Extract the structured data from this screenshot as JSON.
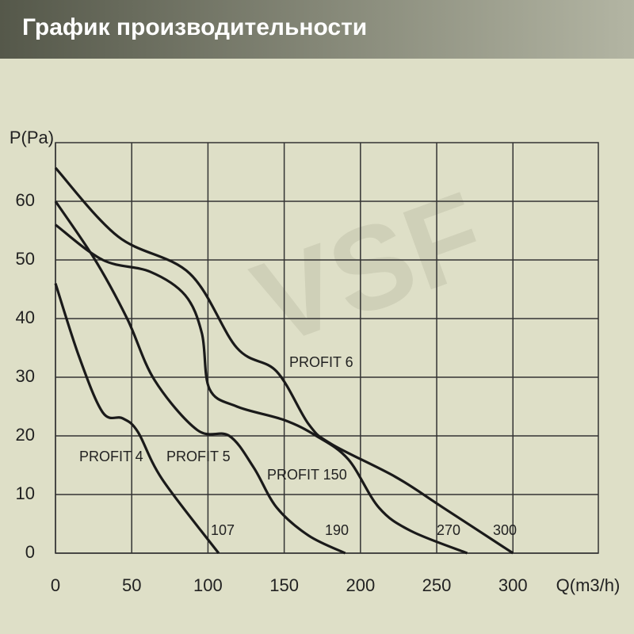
{
  "chart_data": {
    "type": "line",
    "title": "График производительности",
    "watermark": "VSF",
    "y_label": "P(Pa)",
    "x_label": "Q(m3/h)",
    "xlim": [
      0,
      356
    ],
    "ylim": [
      0,
      70
    ],
    "xticks": [
      0,
      50,
      100,
      150,
      200,
      250,
      300
    ],
    "yticks": [
      0,
      10,
      20,
      30,
      40,
      50,
      60
    ],
    "grid": true,
    "series": [
      {
        "name": "PROFIT 4",
        "color": "#1a1a1a",
        "x": [
          0,
          15.5,
          31,
          44,
          54,
          70,
          107
        ],
        "values": [
          46,
          33.5,
          24,
          23,
          20.7,
          12.6,
          0
        ]
      },
      {
        "name": "PROFIT 5",
        "color": "#1a1a1a",
        "x": [
          0,
          26,
          47,
          65,
          93,
          114,
          130,
          145,
          166,
          190
        ],
        "values": [
          60,
          50,
          40,
          29.5,
          21,
          20,
          14.6,
          7.8,
          3,
          0
        ]
      },
      {
        "name": "PROFIT 150",
        "color": "#1a1a1a",
        "x": [
          0,
          31,
          62,
          85,
          96,
          101,
          119,
          150,
          171,
          192,
          212,
          233,
          270
        ],
        "values": [
          56,
          50,
          48,
          44,
          37.5,
          28,
          25,
          22.7,
          20,
          16,
          7.8,
          3.8,
          0
        ]
      },
      {
        "name": "PROFIT 6",
        "color": "#1a1a1a",
        "x": [
          0,
          41,
          88,
          119,
          145,
          166,
          181,
          223,
          254,
          300
        ],
        "values": [
          65.7,
          54,
          47.7,
          35,
          31,
          22,
          18.6,
          13,
          7.8,
          0
        ]
      }
    ],
    "annotations": [
      "107",
      "190",
      "270",
      "300"
    ]
  }
}
